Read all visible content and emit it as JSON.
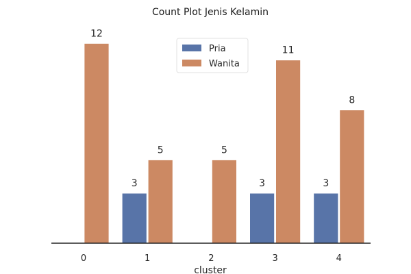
{
  "chart_data": {
    "type": "bar",
    "title": "Count Plot Jenis Kelamin",
    "xlabel": "cluster",
    "ylabel": "",
    "categories": [
      "0",
      "1",
      "2",
      "3",
      "4"
    ],
    "series": [
      {
        "name": "Pria",
        "values": [
          null,
          3,
          null,
          3,
          3
        ],
        "color": "#5874a8"
      },
      {
        "name": "Wanita",
        "values": [
          12,
          5,
          5,
          11,
          8
        ],
        "color": "#cc8963"
      }
    ],
    "ylim": [
      0,
      13
    ],
    "grid": false,
    "legend": "top-center",
    "y_axis_visible": false
  }
}
